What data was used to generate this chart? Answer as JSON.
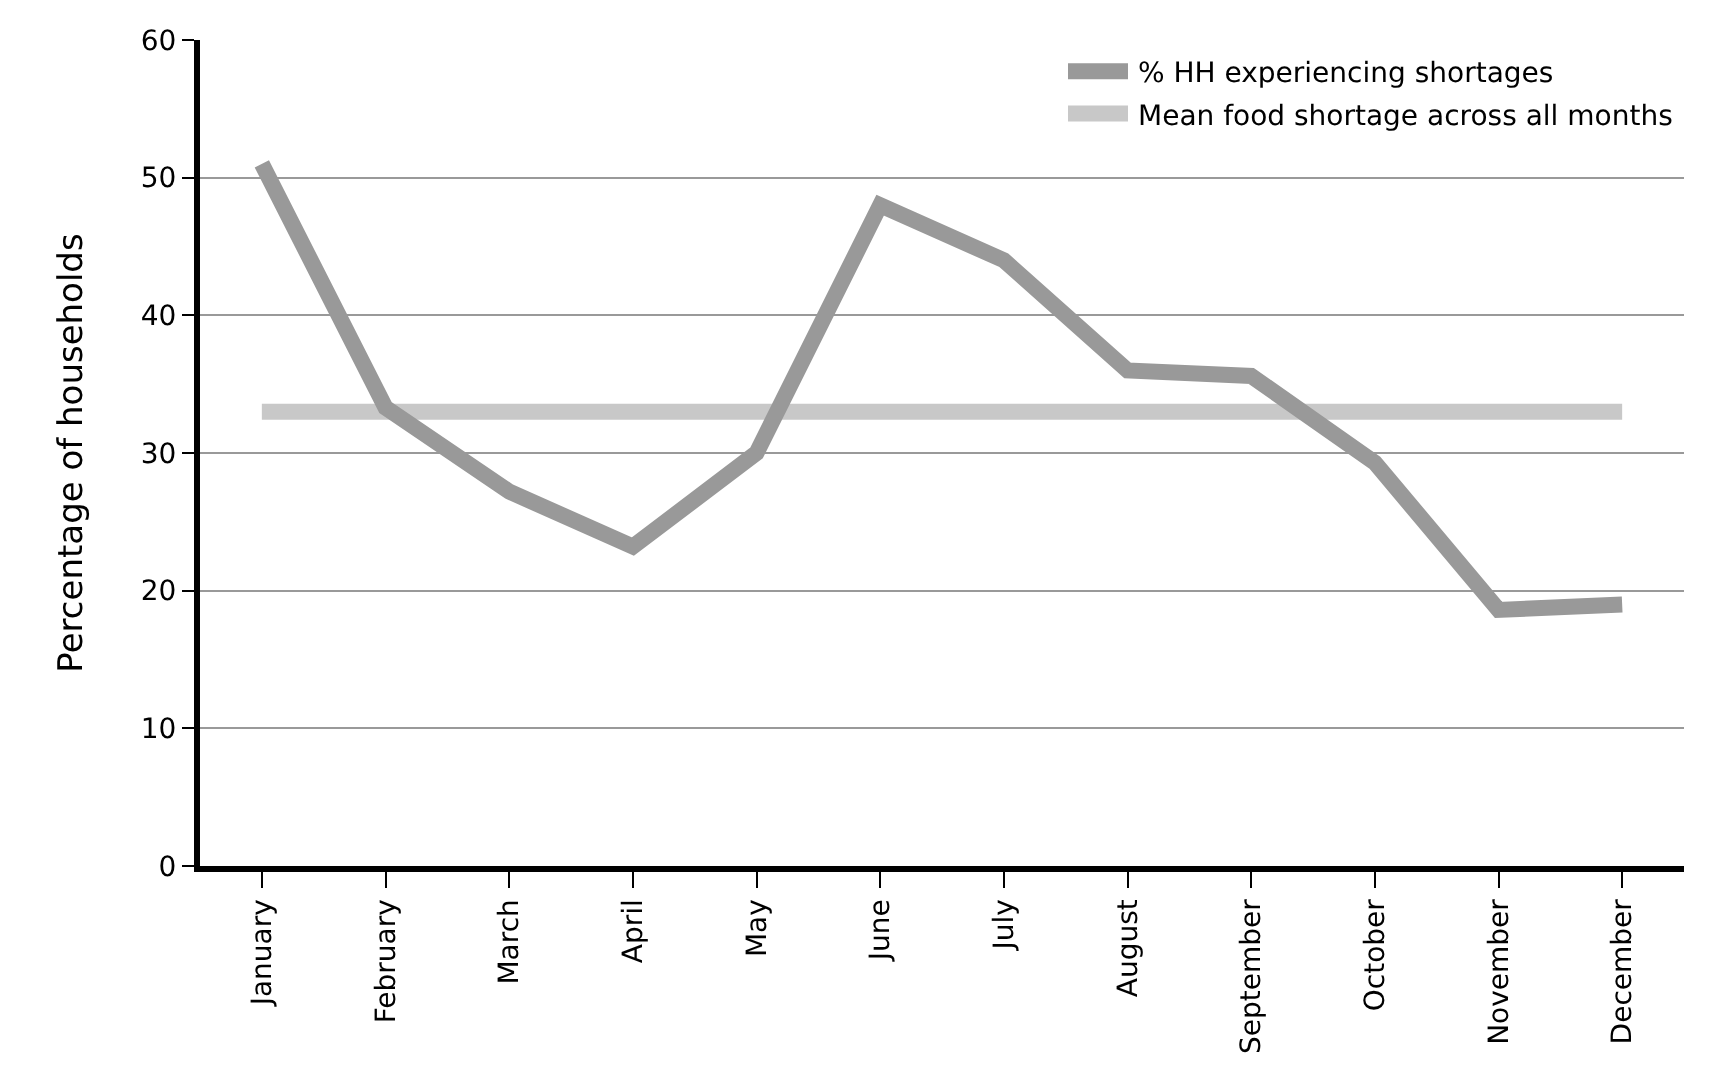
{
  "chart_data": {
    "type": "line",
    "ylabel": "Percentage of households",
    "categories": [
      "January",
      "February",
      "March",
      "April",
      "May",
      "June",
      "July",
      "August",
      "September",
      "October",
      "November",
      "December"
    ],
    "series": [
      {
        "name": "% HH experiencing shortages",
        "color": "#999999",
        "values": [
          51,
          33.3,
          27.2,
          23.2,
          30,
          48,
          44,
          36,
          35.6,
          29.3,
          18.6,
          19
        ]
      },
      {
        "name": "Mean food shortage across all months",
        "color": "#c8c8c8",
        "values": [
          33,
          33,
          33,
          33,
          33,
          33,
          33,
          33,
          33,
          33,
          33,
          33
        ]
      }
    ],
    "ylim": [
      0,
      60
    ],
    "yticks": [
      0,
      10,
      20,
      30,
      40,
      50,
      60
    ],
    "grid": "y",
    "legend": "top right",
    "marker": "none",
    "line_style": "solid"
  }
}
